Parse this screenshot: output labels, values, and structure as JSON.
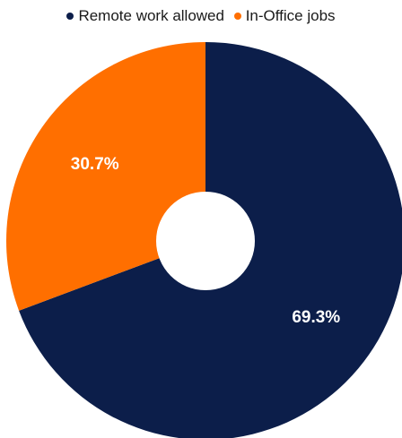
{
  "chart_data": {
    "type": "pie",
    "categories": [
      "Remote work allowed",
      "In-Office jobs"
    ],
    "values": [
      69.3,
      30.7
    ],
    "value_labels": [
      "69.3%",
      "30.7%"
    ],
    "colors": [
      "#0c1e4a",
      "#ff6f00"
    ],
    "legend": "top-center",
    "donut": true
  }
}
